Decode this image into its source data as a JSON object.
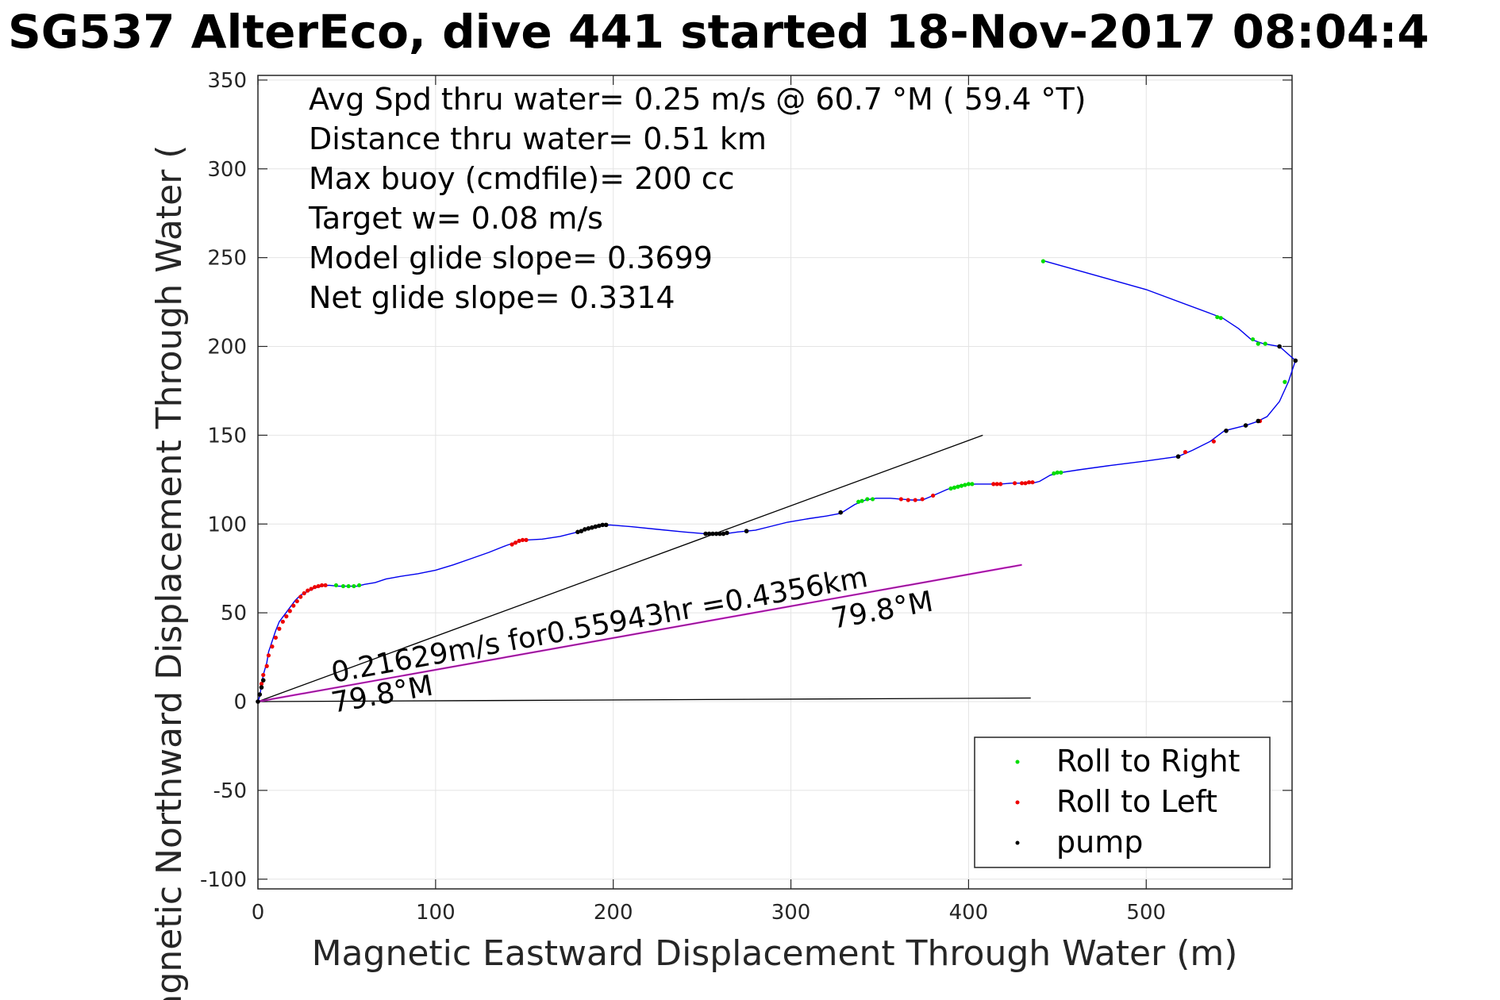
{
  "chart_data": {
    "type": "scatter",
    "title": "SG537 AlterEco, dive 441 started 18-Nov-2017 08:04:4",
    "xlabel": "Magnetic Eastward Displacement Through Water (m)",
    "ylabel": "Magnetic Northward Displacement Through Water (",
    "xlim": [
      0,
      582
    ],
    "ylim": [
      -105,
      353
    ],
    "grid": true,
    "xticks": [
      0,
      100,
      200,
      300,
      400,
      500
    ],
    "yticks": [
      -100,
      -50,
      0,
      50,
      100,
      150,
      200,
      250,
      300,
      350
    ],
    "tick_labels_x": [
      "0",
      "100",
      "200",
      "300",
      "400",
      "500"
    ],
    "tick_labels_y": [
      "-100",
      "-50",
      "0",
      "50",
      "100",
      "150",
      "200",
      "250",
      "300",
      "350"
    ],
    "annotations": [
      "Avg Spd thru water=  0.25 m/s @  60.7 °M ( 59.4 °T)",
      "Distance thru water=  0.51 km",
      "Max buoy (cmdfile)= 200 cc",
      "Target w= 0.08 m/s",
      "Model glide slope= 0.3699",
      "Net glide slope= 0.3314"
    ],
    "current_label": "0.21629m/s for0.55943hr =0.4356km",
    "current_heading_label_1": "79.8°M",
    "current_heading_label_2": "79.8°M",
    "legend": {
      "position": "bottom-right",
      "entries": [
        {
          "label": "Roll to Right",
          "color": "#00dd00"
        },
        {
          "label": "Roll to Left",
          "color": "#ee0000"
        },
        {
          "label": "pump",
          "color": "#000000"
        }
      ]
    },
    "track": {
      "color": "#0000ee",
      "points": [
        [
          0,
          0
        ],
        [
          1,
          3
        ],
        [
          2,
          9
        ],
        [
          3,
          15
        ],
        [
          5,
          22
        ],
        [
          6,
          28
        ],
        [
          8,
          34
        ],
        [
          10,
          40
        ],
        [
          12,
          45
        ],
        [
          15,
          49
        ],
        [
          18,
          53
        ],
        [
          21,
          57
        ],
        [
          24,
          60
        ],
        [
          28,
          62
        ],
        [
          32,
          64
        ],
        [
          36,
          65
        ],
        [
          40,
          65.5
        ],
        [
          45,
          65
        ],
        [
          50,
          65
        ],
        [
          56,
          65
        ],
        [
          60,
          66
        ],
        [
          66,
          67
        ],
        [
          72,
          69
        ],
        [
          80,
          70.5
        ],
        [
          90,
          72
        ],
        [
          100,
          74
        ],
        [
          110,
          77
        ],
        [
          120,
          80.5
        ],
        [
          130,
          84
        ],
        [
          140,
          88
        ],
        [
          146,
          90
        ],
        [
          151,
          91
        ],
        [
          160,
          91.5
        ],
        [
          170,
          93
        ],
        [
          180,
          95.5
        ],
        [
          188,
          98
        ],
        [
          194,
          99
        ],
        [
          198,
          99.5
        ],
        [
          210,
          98.5
        ],
        [
          225,
          97
        ],
        [
          240,
          95.5
        ],
        [
          252,
          94.5
        ],
        [
          258,
          94.5
        ],
        [
          263,
          94.5
        ],
        [
          270,
          95.5
        ],
        [
          280,
          96.5
        ],
        [
          290,
          99
        ],
        [
          298,
          101
        ],
        [
          310,
          103
        ],
        [
          320,
          104.5
        ],
        [
          328,
          106
        ],
        [
          336,
          111
        ],
        [
          342,
          113.5
        ],
        [
          348,
          114.5
        ],
        [
          356,
          114.5
        ],
        [
          362,
          114
        ],
        [
          368,
          113.5
        ],
        [
          374,
          113.5
        ],
        [
          380,
          116
        ],
        [
          388,
          119.5
        ],
        [
          396,
          122
        ],
        [
          404,
          122.5
        ],
        [
          412,
          122.5
        ],
        [
          418,
          122.5
        ],
        [
          424,
          123
        ],
        [
          430,
          123
        ],
        [
          436,
          123
        ],
        [
          440,
          124
        ],
        [
          446,
          127.5
        ],
        [
          452,
          129
        ],
        [
          462,
          130.5
        ],
        [
          480,
          133
        ],
        [
          500,
          135.5
        ],
        [
          518,
          138
        ],
        [
          526,
          141.5
        ],
        [
          536,
          146.5
        ],
        [
          544,
          152.5
        ],
        [
          556,
          155.5
        ],
        [
          562,
          157.5
        ],
        [
          568,
          160.5
        ],
        [
          575,
          169
        ],
        [
          580,
          180
        ],
        [
          584,
          192
        ],
        [
          575,
          200
        ],
        [
          566,
          201.5
        ],
        [
          559,
          204
        ],
        [
          552,
          210
        ],
        [
          543,
          216
        ],
        [
          500,
          232
        ],
        [
          443,
          248
        ]
      ]
    },
    "roll_right_points": [
      [
        44,
        65.5
      ],
      [
        48,
        65
      ],
      [
        51,
        65
      ],
      [
        54,
        65
      ],
      [
        57,
        65.5
      ],
      [
        338,
        112.5
      ],
      [
        340,
        113
      ],
      [
        343,
        114
      ],
      [
        346,
        114
      ],
      [
        390,
        120
      ],
      [
        392,
        120.5
      ],
      [
        394,
        121
      ],
      [
        396,
        121.5
      ],
      [
        398,
        122
      ],
      [
        400,
        122.5
      ],
      [
        402,
        122.5
      ],
      [
        448,
        128.5
      ],
      [
        450,
        129
      ],
      [
        452,
        129
      ],
      [
        442,
        248
      ],
      [
        540,
        216.5
      ],
      [
        542,
        216
      ],
      [
        560,
        204
      ],
      [
        563,
        201.5
      ],
      [
        567,
        201.5
      ],
      [
        578,
        180
      ]
    ],
    "roll_left_points": [
      [
        1,
        4
      ],
      [
        2,
        10
      ],
      [
        3,
        15
      ],
      [
        5,
        20
      ],
      [
        6,
        26
      ],
      [
        8,
        31
      ],
      [
        10,
        36
      ],
      [
        12,
        41
      ],
      [
        14,
        45
      ],
      [
        16,
        48
      ],
      [
        18,
        51
      ],
      [
        20,
        54
      ],
      [
        22,
        56.5
      ],
      [
        24,
        59
      ],
      [
        26,
        61
      ],
      [
        28,
        62.5
      ],
      [
        30,
        63.5
      ],
      [
        32,
        64.5
      ],
      [
        34,
        65
      ],
      [
        36,
        65.5
      ],
      [
        38,
        65.5
      ],
      [
        143,
        88.5
      ],
      [
        145,
        89.5
      ],
      [
        147,
        90.5
      ],
      [
        149,
        91
      ],
      [
        151,
        91
      ],
      [
        362,
        114
      ],
      [
        366,
        113.5
      ],
      [
        370,
        113.5
      ],
      [
        374,
        114
      ],
      [
        380,
        116
      ],
      [
        414,
        122.5
      ],
      [
        416,
        122.5
      ],
      [
        418,
        122.5
      ],
      [
        426,
        123
      ],
      [
        430,
        123
      ],
      [
        432,
        123
      ],
      [
        434,
        123.5
      ],
      [
        436,
        123.5
      ],
      [
        522,
        140.5
      ],
      [
        538,
        146.5
      ],
      [
        564,
        158
      ]
    ],
    "pump_points": [
      [
        0,
        0
      ],
      [
        1,
        4
      ],
      [
        2,
        8
      ],
      [
        3,
        12
      ],
      [
        180,
        95.5
      ],
      [
        182,
        96
      ],
      [
        184,
        97
      ],
      [
        186,
        97.5
      ],
      [
        188,
        98
      ],
      [
        190,
        98.5
      ],
      [
        192,
        99
      ],
      [
        194,
        99.5
      ],
      [
        196,
        99.5
      ],
      [
        252,
        94.5
      ],
      [
        254,
        94.5
      ],
      [
        256,
        94.5
      ],
      [
        258,
        94.5
      ],
      [
        260,
        94.5
      ],
      [
        262,
        94.5
      ],
      [
        264,
        95
      ],
      [
        275,
        96
      ],
      [
        328,
        106.5
      ],
      [
        518,
        138
      ],
      [
        545,
        152.5
      ],
      [
        556,
        155.5
      ],
      [
        563,
        158
      ],
      [
        575,
        200
      ],
      [
        584,
        192
      ]
    ],
    "reference_lines": {
      "model_glide": {
        "x": [
          0,
          408
        ],
        "y": [
          0,
          150
        ]
      },
      "horizontal_ref": {
        "x": [
          0,
          435
        ],
        "y": [
          0,
          2
        ]
      },
      "current": {
        "x": [
          0,
          430
        ],
        "y": [
          0,
          77
        ]
      }
    }
  }
}
